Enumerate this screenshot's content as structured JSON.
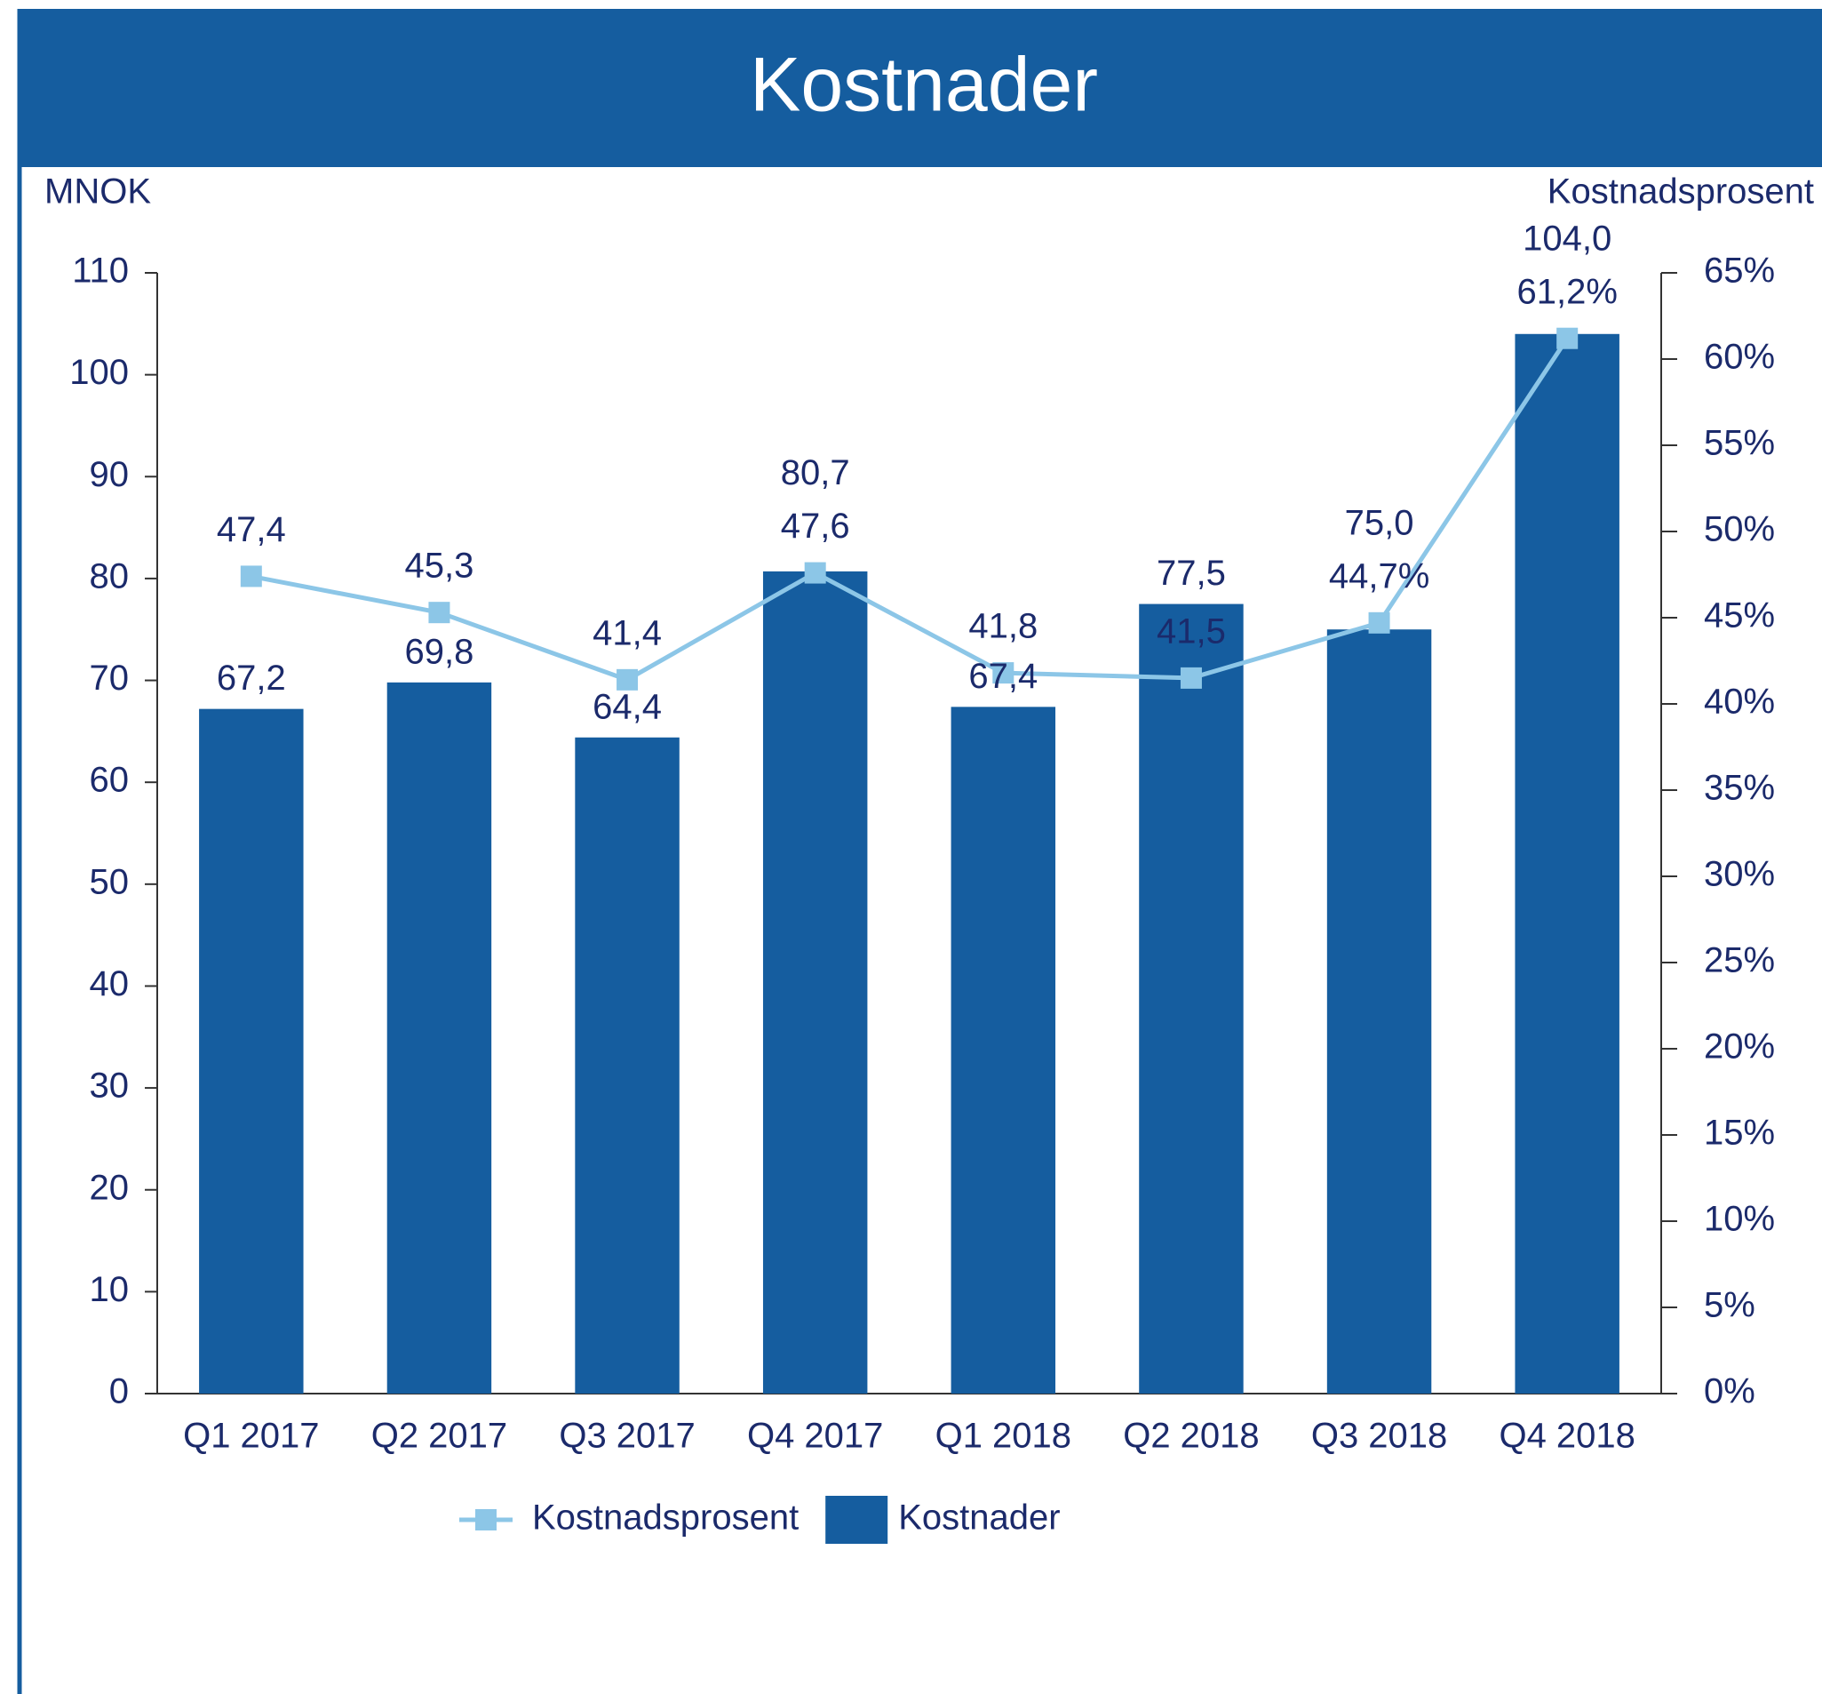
{
  "chart_data": {
    "type": "bar-line",
    "title": "Kostnader",
    "y_label": "MNOK",
    "y2_label": "Kostnadsprosent",
    "categories": [
      "Q1 2017",
      "Q2 2017",
      "Q3 2017",
      "Q4 2017",
      "Q1 2018",
      "Q2 2018",
      "Q3 2018",
      "Q4 2018"
    ],
    "series": [
      {
        "name": "Kostnadsprosent",
        "type": "line",
        "axis": "y2",
        "color": "#8cc6e7",
        "values": [
          47.4,
          45.3,
          41.4,
          47.6,
          41.8,
          41.5,
          44.7,
          61.2
        ],
        "value_labels": [
          "47,4",
          "45,3",
          "41,4",
          "47,6",
          "41,8",
          "41,5",
          "44,7%",
          "61,2%"
        ]
      },
      {
        "name": "Kostnader",
        "type": "bar",
        "color": "#155d9f",
        "values": [
          67.2,
          69.8,
          64.4,
          80.7,
          67.4,
          77.5,
          75.0,
          104.0
        ],
        "value_labels": [
          "67,2",
          "69,8",
          "64,4",
          "80,7",
          "67,4",
          "77,5",
          "75,0",
          "104,0"
        ]
      }
    ],
    "ylim": [
      0,
      110
    ],
    "yticks": [
      0,
      10,
      20,
      30,
      40,
      50,
      60,
      70,
      80,
      90,
      100,
      110
    ],
    "y2lim": [
      0,
      65
    ],
    "y2ticks": [
      {
        "value": 0,
        "label": "0%"
      },
      {
        "value": 5,
        "label": "5%"
      },
      {
        "value": 10,
        "label": "10%"
      },
      {
        "value": 15,
        "label": "15%"
      },
      {
        "value": 20,
        "label": "20%"
      },
      {
        "value": 25,
        "label": "25%"
      },
      {
        "value": 30,
        "label": "30%"
      },
      {
        "value": 35,
        "label": "35%"
      },
      {
        "value": 40,
        "label": "40%"
      },
      {
        "value": 45,
        "label": "45%"
      },
      {
        "value": 50,
        "label": "50%"
      },
      {
        "value": 55,
        "label": "55%"
      },
      {
        "value": 60,
        "label": "60%"
      },
      {
        "value": 65,
        "label": "65%"
      }
    ],
    "legend": "bottom"
  }
}
